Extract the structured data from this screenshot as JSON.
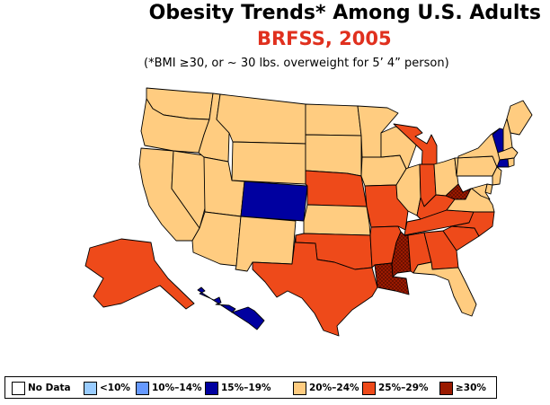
{
  "header": {
    "title": "Obesity Trends*  Among U.S. Adults",
    "subtitle": "BRFSS, 2005",
    "note": "(*BMI ≥30, or ~ 30 lbs. overweight for 5’ 4” person)"
  },
  "colors": {
    "no_data": "#ffffff",
    "lt10": "#99ccff",
    "b10_14": "#6699ff",
    "b15_19": "#0000a0",
    "b20_24": "#ffcc80",
    "b25_29": "#ee4a1a",
    "ge30": "#9a1a00",
    "subtitle": "#e0301e"
  },
  "legend": [
    {
      "label": "No Data",
      "color_key": "no_data"
    },
    {
      "label": "<10%",
      "color_key": "lt10"
    },
    {
      "label": "10%–14%",
      "color_key": "b10_14"
    },
    {
      "label": "15%–19%",
      "color_key": "b15_19"
    },
    {
      "label": "20%–24%",
      "color_key": "b20_24"
    },
    {
      "label": "25%–29%",
      "color_key": "b25_29"
    },
    {
      "label": "≥30%",
      "color_key": "ge30"
    }
  ],
  "map_data": {
    "b15_19": [
      "CO",
      "VT",
      "CT",
      "HI"
    ],
    "b20_24": [
      "WA",
      "OR",
      "CA",
      "NV",
      "ID",
      "MT",
      "WY",
      "UT",
      "AZ",
      "NM",
      "ND",
      "SD",
      "MN",
      "IA",
      "KS",
      "WI",
      "IL",
      "OH",
      "PA",
      "NY",
      "NJ",
      "DE",
      "MD",
      "VA",
      "FL",
      "ME",
      "NH",
      "MA",
      "RI"
    ],
    "b25_29": [
      "AK",
      "TX",
      "OK",
      "NE",
      "MO",
      "AR",
      "MI",
      "IN",
      "KY",
      "TN",
      "AL",
      "GA",
      "SC",
      "NC"
    ],
    "ge30": [
      "MS",
      "LA",
      "WV"
    ]
  }
}
